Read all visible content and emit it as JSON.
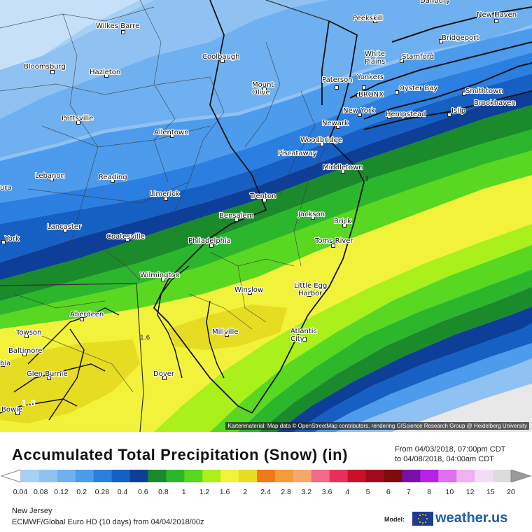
{
  "map": {
    "cities": [
      {
        "name": "Danbury"
      },
      {
        "name": "New Haven"
      },
      {
        "name": "Peekskill"
      },
      {
        "name": "Wilkes-Barre"
      },
      {
        "name": "Bridgeport"
      },
      {
        "name": "Coolbaugh"
      },
      {
        "name": "Stamford"
      },
      {
        "name": "White Plains"
      },
      {
        "name": "Bloomsburg"
      },
      {
        "name": "Hazleton"
      },
      {
        "name": "Paterson"
      },
      {
        "name": "Yonkers"
      },
      {
        "name": "Mount Olive"
      },
      {
        "name": "Oyster Bay"
      },
      {
        "name": "Smithtown"
      },
      {
        "name": "BRONX"
      },
      {
        "name": "Brookhaven"
      },
      {
        "name": "New York"
      },
      {
        "name": "Islip"
      },
      {
        "name": "Hempstead"
      },
      {
        "name": "Pottsville"
      },
      {
        "name": "Newark"
      },
      {
        "name": "Allentown"
      },
      {
        "name": "Woodbridge"
      },
      {
        "name": "Piscataway"
      },
      {
        "name": "Middletown"
      },
      {
        "name": "Lebanon"
      },
      {
        "name": "Reading"
      },
      {
        "name": "Trenton"
      },
      {
        "name": "Limerick"
      },
      {
        "name": "Jackson"
      },
      {
        "name": "Bensalem"
      },
      {
        "name": "Brick"
      },
      {
        "name": "Lancaster"
      },
      {
        "name": "Coatesville"
      },
      {
        "name": "Toms River"
      },
      {
        "name": "York"
      },
      {
        "name": "Philadelphia"
      },
      {
        "name": "Wilmington"
      },
      {
        "name": "Winslow"
      },
      {
        "name": "Little Egg Harbor"
      },
      {
        "name": "Aberdeen"
      },
      {
        "name": "Millville"
      },
      {
        "name": "Towson"
      },
      {
        "name": "Atlantic City"
      },
      {
        "name": "Baltimore"
      },
      {
        "name": "Dover"
      },
      {
        "name": "Glen Burnie"
      },
      {
        "name": "Bowie"
      },
      {
        "name": "ura"
      },
      {
        "name": "bia"
      }
    ],
    "contour_labels": [
      "1.6",
      "3",
      "1.8"
    ],
    "attribution": "Kartenmaterial: Map data © OpenStreetMap contributors, rendering GIScience Research Group @ Heidelberg University"
  },
  "legend": {
    "title": "Accumulated Total Precipitation (Snow) (in)",
    "period_from": "From 04/03/2018, 07:00pm CDT",
    "period_to": "to 04/08/2018, 04:00am CDT",
    "ticks": [
      "0.04",
      "0.08",
      "0.12",
      "0.2",
      "0.28",
      "0.4",
      "0.6",
      "0.8",
      "1",
      "1.2",
      "1.6",
      "2",
      "2.4",
      "2.8",
      "3.2",
      "3.6",
      "4",
      "5",
      "6",
      "7",
      "8",
      "10",
      "12",
      "15",
      "20"
    ],
    "colors": [
      "#a6d0f5",
      "#8fc2f3",
      "#6fb0f0",
      "#4d9bec",
      "#2a7fe0",
      "#1660c4",
      "#0e3f98",
      "#1a8a2a",
      "#2cb62c",
      "#58d820",
      "#aaf01a",
      "#f2f23a",
      "#e6dc22",
      "#f07a1a",
      "#f79a3a",
      "#f7a86a",
      "#f06a8a",
      "#e8305a",
      "#c8102a",
      "#a00a1a",
      "#820a0a",
      "#7a10a8",
      "#b820e8",
      "#e070f0",
      "#f0b0f4",
      "#f4dcf6",
      "#dcdcdc"
    ],
    "region": "New Jersey",
    "model_run": "ECMWF/Global Euro HD (10 days) from 04/04/2018/00z",
    "model_label": "Model:",
    "brand": "weather.us"
  }
}
